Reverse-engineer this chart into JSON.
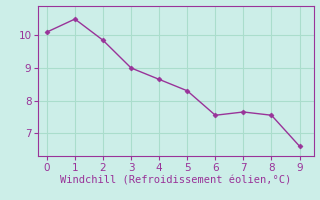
{
  "x": [
    0,
    1,
    2,
    3,
    4,
    5,
    6,
    7,
    8,
    9
  ],
  "y": [
    10.1,
    10.5,
    9.85,
    9.0,
    8.65,
    8.3,
    7.55,
    7.65,
    7.55,
    6.6
  ],
  "line_color": "#993399",
  "marker": "D",
  "marker_size": 2.5,
  "line_width": 1.0,
  "xlabel": "Windchill (Refroidissement éolien,°C)",
  "xlabel_color": "#993399",
  "xlabel_fontsize": 7.5,
  "background_color": "#cceee8",
  "grid_color": "#aaddcc",
  "tick_color": "#993399",
  "spine_color": "#993399",
  "xlim": [
    -0.3,
    9.5
  ],
  "ylim": [
    6.3,
    10.9
  ],
  "yticks": [
    7,
    8,
    9,
    10
  ],
  "xticks": [
    0,
    1,
    2,
    3,
    4,
    5,
    6,
    7,
    8,
    9
  ],
  "tick_labelsize": 7.5
}
